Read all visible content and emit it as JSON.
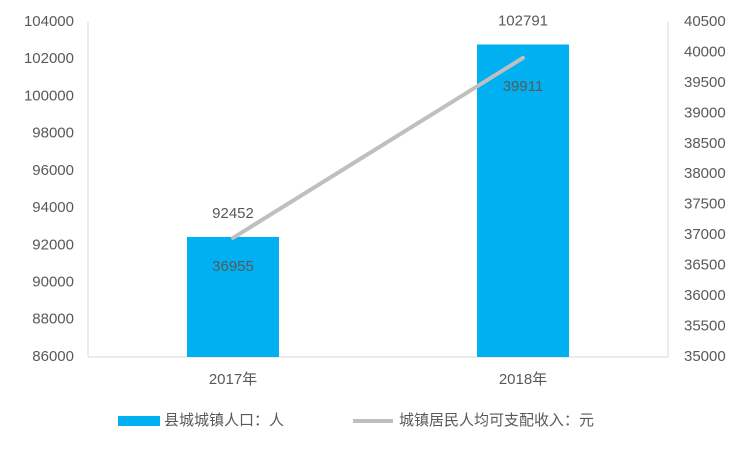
{
  "chart_data": {
    "type": "bar",
    "categories": [
      "2017年",
      "2018年"
    ],
    "series": [
      {
        "name": "县城城镇人口：人",
        "type": "bar",
        "color": "#00b0f0",
        "values": [
          92452,
          102791
        ]
      },
      {
        "name": "城镇居民人均可支配收入：元",
        "type": "line",
        "axis": "y2",
        "color": "#bfbfbf",
        "values": [
          36955,
          39911
        ]
      }
    ],
    "ylim": [
      86000,
      104000
    ],
    "yticks": [
      86000,
      88000,
      90000,
      92000,
      94000,
      96000,
      98000,
      100000,
      102000,
      104000
    ],
    "y2lim": [
      35000,
      40500
    ],
    "y2ticks": [
      35000,
      35500,
      36000,
      36500,
      37000,
      37500,
      38000,
      38500,
      39000,
      39500,
      40000,
      40500
    ],
    "grid": false,
    "legend": "bottom"
  }
}
